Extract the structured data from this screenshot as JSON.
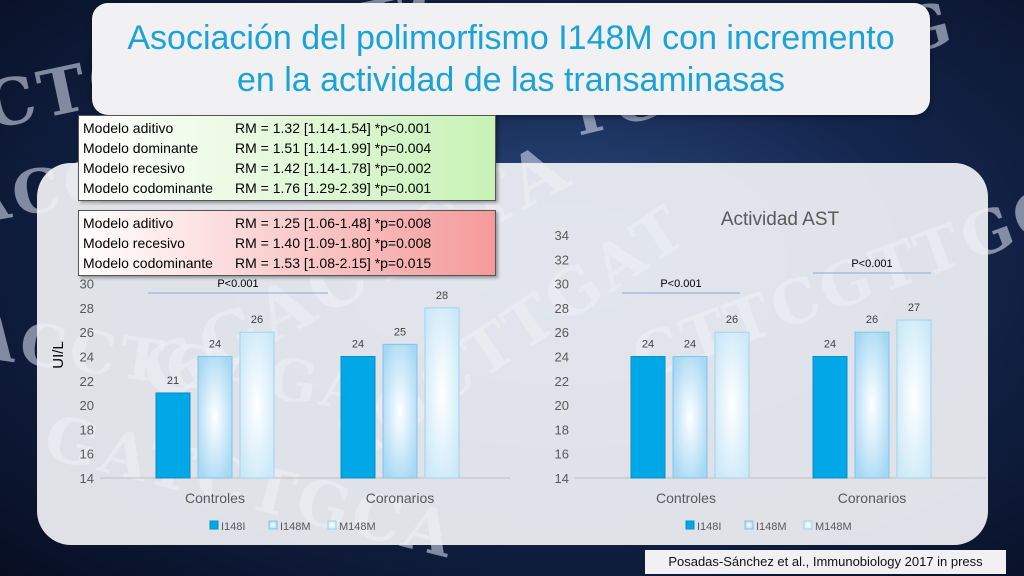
{
  "slide": {
    "title_line1": "Asociación del polimorfismo I148M con incremento",
    "title_line2": "en la actividad de las transaminasas",
    "source": "Posadas-Sánchez et al., Immunobiology 2017 in press"
  },
  "alt_box": {
    "rows": [
      {
        "model": "Modelo aditivo",
        "stat": "RM = 1.32 [1.14-1.54] *p<0.001"
      },
      {
        "model": "Modelo dominante",
        "stat": "RM = 1.51 [1.14-1.99] *p=0.004"
      },
      {
        "model": "Modelo recesivo",
        "stat": "RM = 1.42 [1.14-1.78] *p=0.002"
      },
      {
        "model": "Modelo codominante",
        "stat": "RM = 1.76 [1.29-2.39] *p=0.001"
      }
    ]
  },
  "ast_box": {
    "rows": [
      {
        "model": "Modelo aditivo",
        "stat": "RM = 1.25 [1.06-1.48] *p=0.008"
      },
      {
        "model": "Modelo recesivo",
        "stat": "RM = 1.40 [1.09-1.80] *p=0.008"
      },
      {
        "model": "Modelo codominante",
        "stat": "RM = 1.53 [1.08-2.15] *p=0.015"
      }
    ]
  },
  "background_text": [
    "CTCAGGATC",
    "TGCATATG",
    "ACGGATCT",
    "GGACTCTA",
    "AGCTTGAT",
    "ACCTGAGA",
    "CTTCGTTGCA",
    "GATCTGCA"
  ],
  "colors": {
    "title": "#1aa3d6",
    "I148I": "#00a8e8",
    "I148M": "#a6d8f4",
    "M148M": "#cce9f8"
  },
  "chart_data": [
    {
      "type": "bar",
      "title": "",
      "ylabel": "UI/L",
      "ylim": [
        14,
        34
      ],
      "yticks": [
        14,
        16,
        18,
        20,
        22,
        24,
        26,
        28,
        30
      ],
      "categories": [
        "Controles",
        "Coronarios"
      ],
      "series": [
        {
          "name": "I148I",
          "values": [
            21,
            24
          ]
        },
        {
          "name": "I148M",
          "values": [
            24,
            25
          ]
        },
        {
          "name": "M148M",
          "values": [
            26,
            28
          ]
        }
      ],
      "annotations": [
        {
          "text": "P<0.001",
          "category": "Controles"
        }
      ],
      "legend": "bottom",
      "grid": false
    },
    {
      "type": "bar",
      "title": "Actividad AST",
      "ylabel": "",
      "ylim": [
        14,
        34
      ],
      "yticks": [
        14,
        16,
        18,
        20,
        22,
        24,
        26,
        28,
        30,
        32,
        34
      ],
      "categories": [
        "Controles",
        "Coronarios"
      ],
      "series": [
        {
          "name": "I148I",
          "values": [
            24,
            24
          ]
        },
        {
          "name": "I148M",
          "values": [
            24,
            26
          ]
        },
        {
          "name": "M148M",
          "values": [
            26,
            27
          ]
        }
      ],
      "annotations": [
        {
          "text": "P<0.001",
          "category": "Controles"
        },
        {
          "text": "P<0.001",
          "category": "Coronarios"
        }
      ],
      "legend": "bottom",
      "grid": false
    }
  ]
}
